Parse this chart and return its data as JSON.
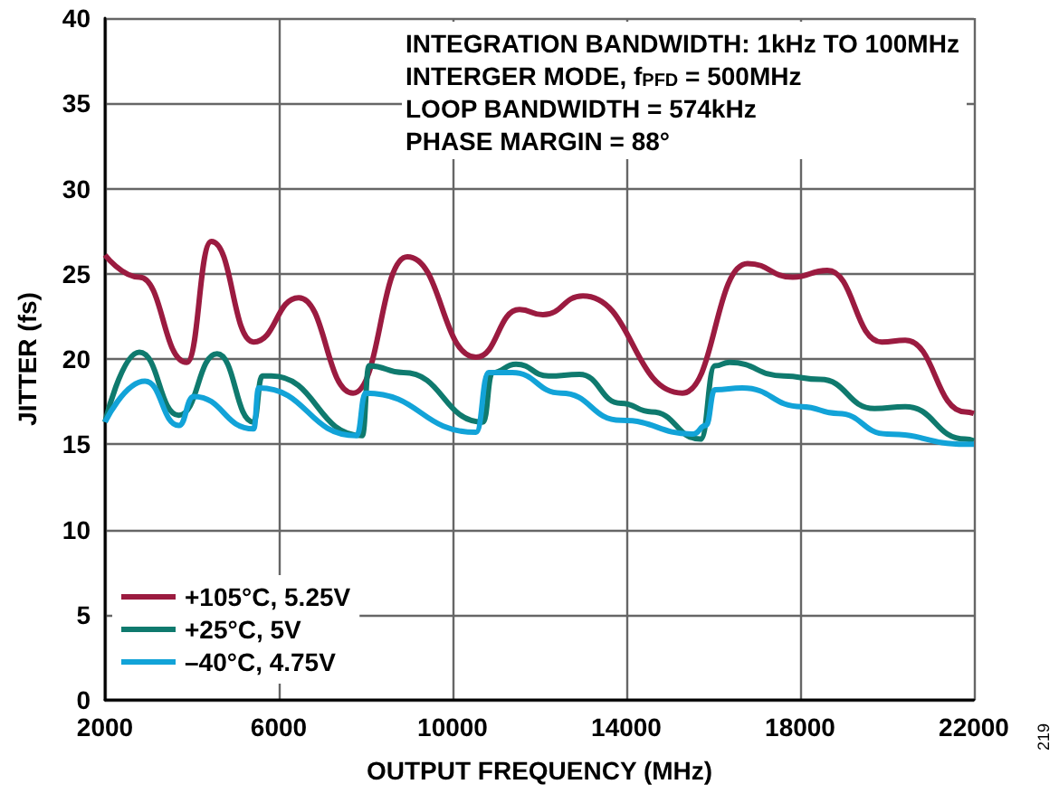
{
  "chart_data": {
    "type": "line",
    "xlabel": "OUTPUT FREQUENCY (MHz)",
    "ylabel": "JITTER (fs)",
    "xlim": [
      2000,
      22000
    ],
    "xticks": [
      2000,
      6000,
      10000,
      14000,
      18000,
      22000
    ],
    "ylim": [
      0,
      40
    ],
    "yticks": [
      0,
      5,
      10,
      15,
      20,
      25,
      30,
      35,
      40
    ],
    "grid": true,
    "legend": "bottom left",
    "annotations": [
      "INTEGRATION BANDWIDTH: 1kHz TO 100MHz",
      "INTERGER MODE, f$_{PFD}$ = 500MHz",
      "LOOP BANDWIDTH = 574kHz",
      "PHASE MARGIN = 88°",
      "219"
    ],
    "series": [
      {
        "name": "+105°C, 5.25V",
        "color": "#9b1b40",
        "x": [
          2000,
          2790,
          3880,
          4450,
          5420,
          6460,
          7710,
          8960,
          10540,
          11540,
          12080,
          13000,
          15290,
          16790,
          17830,
          18625,
          19880,
          20420,
          21800,
          22000
        ],
        "values": [
          26.1,
          24.8,
          19.8,
          26.9,
          21.0,
          23.6,
          18.0,
          26.0,
          20.1,
          22.9,
          22.6,
          23.7,
          18.0,
          25.6,
          24.8,
          25.2,
          21.0,
          21.1,
          16.9,
          16.8
        ]
      },
      {
        "name": "+25°C, 5V",
        "color": "#0f7a6e",
        "x": [
          2000,
          2790,
          3700,
          4580,
          5420,
          5620,
          5830,
          7920,
          8080,
          8870,
          10700,
          10920,
          11460,
          12210,
          12920,
          13875,
          14580,
          15710,
          16040,
          16375,
          17625,
          18460,
          19710,
          20420,
          21800,
          22000
        ],
        "values": [
          16.3,
          20.4,
          16.7,
          20.3,
          16.3,
          19.0,
          19.0,
          15.5,
          19.6,
          19.2,
          16.3,
          19.2,
          19.7,
          19.0,
          19.1,
          17.4,
          16.9,
          15.3,
          19.6,
          19.8,
          19.0,
          18.8,
          17.1,
          17.2,
          15.3,
          15.2
        ]
      },
      {
        "name": "–40°C, 4.75V",
        "color": "#12a3d8",
        "x": [
          2000,
          2920,
          3700,
          4040,
          5420,
          5540,
          7790,
          8000,
          10540,
          10830,
          11375,
          12500,
          13875,
          15540,
          15830,
          16040,
          16670,
          18040,
          18875,
          20000,
          21800,
          22000
        ],
        "values": [
          16.3,
          18.7,
          16.1,
          17.8,
          15.9,
          18.3,
          15.5,
          18.0,
          15.7,
          19.2,
          19.2,
          18.0,
          16.4,
          15.6,
          16.1,
          18.2,
          18.3,
          17.2,
          16.8,
          15.6,
          15.0,
          15.0
        ]
      }
    ]
  }
}
